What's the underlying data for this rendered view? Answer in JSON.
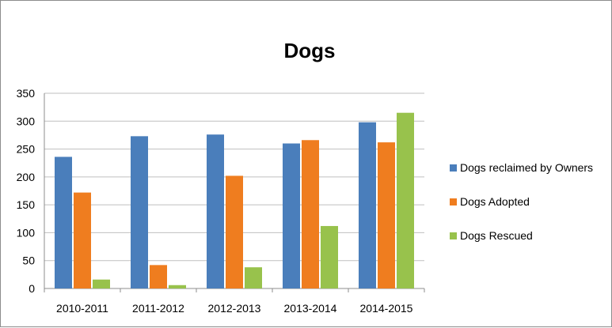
{
  "chart_data": {
    "type": "bar",
    "title": "Dogs",
    "xlabel": "",
    "ylabel": "",
    "categories": [
      "2010-2011",
      "2011-2012",
      "2012-2013",
      "2013-2014",
      "2014-2015"
    ],
    "series": [
      {
        "name": "Dogs reclaimed by Owners",
        "values": [
          236,
          273,
          276,
          260,
          298
        ],
        "color": "#4a7ebb"
      },
      {
        "name": "Dogs Adopted",
        "values": [
          172,
          42,
          202,
          266,
          262
        ],
        "color": "#ef7d1f"
      },
      {
        "name": "Dogs Rescued",
        "values": [
          16,
          6,
          38,
          112,
          315
        ],
        "color": "#98c24c"
      }
    ],
    "ylim": [
      0,
      350
    ],
    "yticks": [
      0,
      50,
      100,
      150,
      200,
      250,
      300,
      350
    ],
    "grid": true,
    "legend_position": "right"
  }
}
